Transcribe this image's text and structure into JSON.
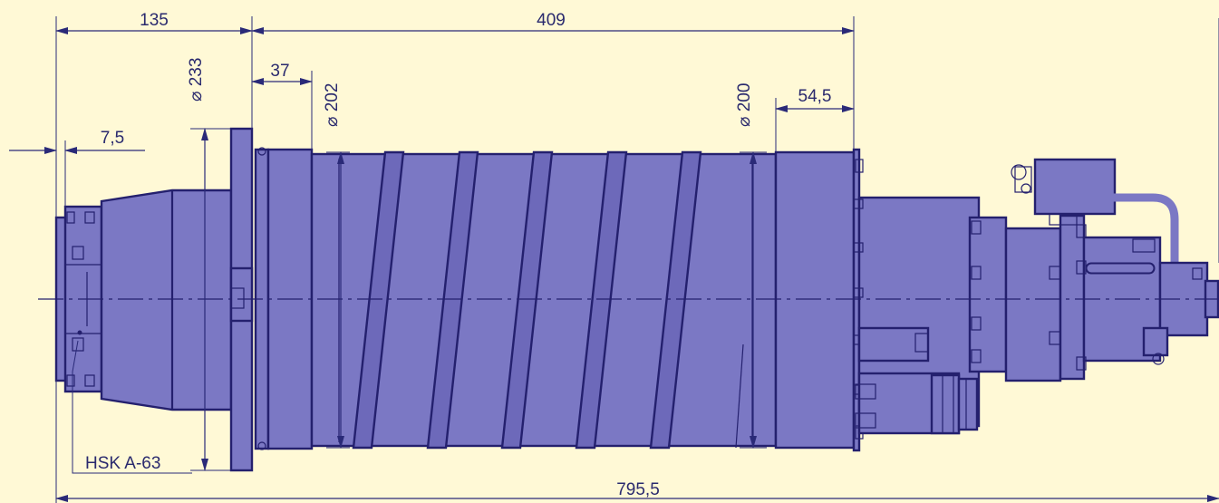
{
  "dimensions": {
    "d135": "135",
    "d409": "409",
    "d37": "37",
    "d7_5": "7,5",
    "d54_5": "54,5",
    "d795_5": "795,5",
    "dia233": "⌀ 233",
    "dia202": "⌀ 202",
    "dia200": "⌀ 200"
  },
  "labels": {
    "tool_interface": "HSK A-63"
  },
  "colors": {
    "background": "#fff9d6",
    "body_fill": "#7b78c4",
    "outline": "#24206e"
  }
}
